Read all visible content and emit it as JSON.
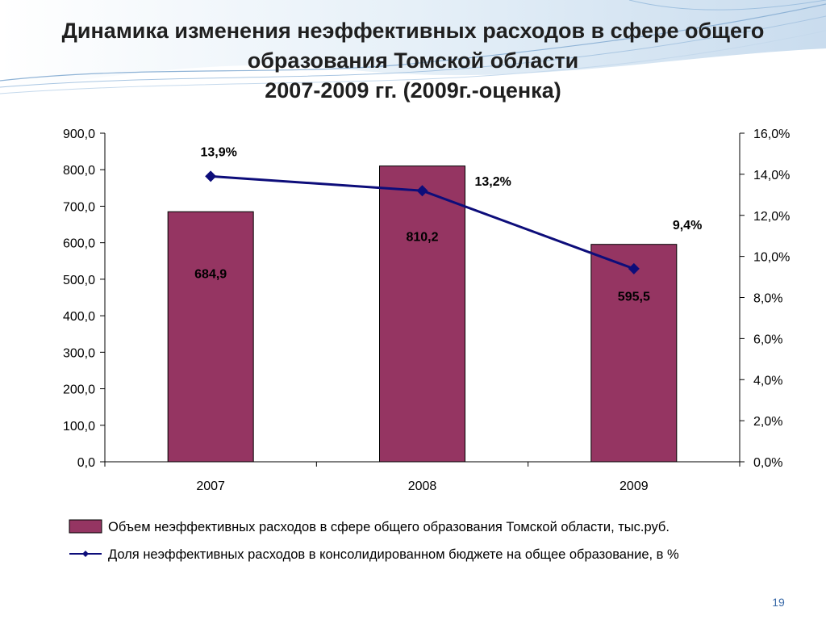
{
  "slide": {
    "title_lines": [
      "Динамика изменения неэффективных расходов в сфере общего",
      "образования Томской области",
      "2007-2009 гг. (2009г.-оценка)"
    ],
    "page_number": "19"
  },
  "chart_data": {
    "type": "bar",
    "categories": [
      "2007",
      "2008",
      "2009"
    ],
    "series": [
      {
        "name": "Объем неэффективных расходов в сфере общего образования Томской области, тыс.руб.",
        "type": "bar",
        "axis": "left",
        "values": [
          684.9,
          810.2,
          595.5
        ],
        "labels": [
          "684,9",
          "810,2",
          "595,5"
        ],
        "color": "#953562"
      },
      {
        "name": "Доля неэффективных расходов в консолидированном бюджете на общее образование, в %",
        "type": "line",
        "axis": "right",
        "values": [
          13.9,
          13.2,
          9.4
        ],
        "labels": [
          "13,9%",
          "13,2%",
          "9,4%"
        ],
        "color": "#0d0d7a"
      }
    ],
    "y_left": {
      "min": 0,
      "max": 900,
      "ticks": [
        "0,0",
        "100,0",
        "200,0",
        "300,0",
        "400,0",
        "500,0",
        "600,0",
        "700,0",
        "800,0",
        "900,0"
      ]
    },
    "y_right": {
      "min": 0,
      "max": 16,
      "ticks": [
        "0,0%",
        "2,0%",
        "4,0%",
        "6,0%",
        "8,0%",
        "10,0%",
        "12,0%",
        "14,0%",
        "16,0%"
      ]
    },
    "grid": false,
    "legend_position": "bottom"
  },
  "colors": {
    "bar_fill": "#953562",
    "line": "#0d0d7a",
    "accent": "#3a6aa8"
  }
}
